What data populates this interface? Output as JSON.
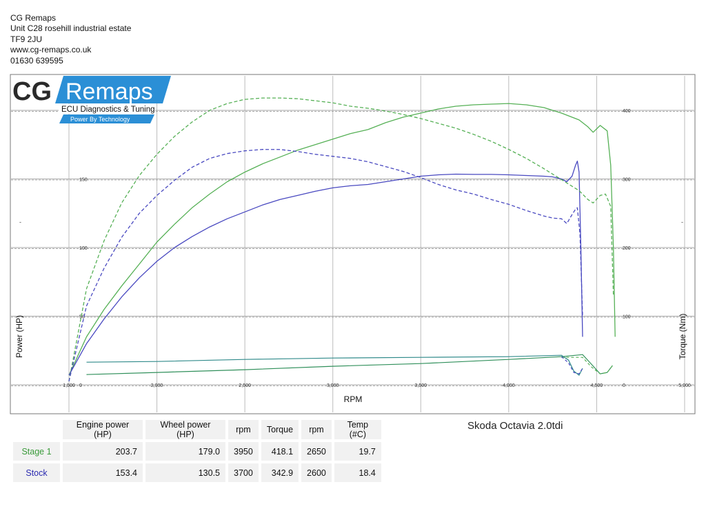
{
  "header": {
    "company": "CG Remaps",
    "address1": "Unit C28 rosehill industrial estate",
    "postcode": "TF9 2JU",
    "website": "www.cg-remaps.co.uk",
    "phone": "01630 639595"
  },
  "logo": {
    "brand_cg": "CG",
    "brand_remaps": "Remaps",
    "tagline": "ECU Diagnostics & Tuning",
    "sub_tagline": "Power By Technology",
    "accent_color": "#2b8fd6"
  },
  "vehicle": "Skoda Octavia 2.0tdi",
  "table": {
    "headers": [
      "Engine power (HP)",
      "Wheel power (HP)",
      "rpm",
      "Torque",
      "rpm",
      "Temp (#C)"
    ],
    "rows": [
      {
        "label": "Stage 1",
        "color": "#3a9a3a",
        "values": [
          "203.7",
          "179.0",
          "3950",
          "418.1",
          "2650",
          "19.7"
        ]
      },
      {
        "label": "Stock",
        "color": "#2a2ab0",
        "values": [
          "153.4",
          "130.5",
          "3700",
          "342.9",
          "2600",
          "18.4"
        ]
      }
    ]
  },
  "chart_data": {
    "type": "line",
    "xlabel": "RPM",
    "ylabel": "Power (HP)",
    "y2label": "Torque (Nm)",
    "xlim": [
      1500,
      5000
    ],
    "ylim": [
      0,
      200
    ],
    "y2lim": [
      0,
      400
    ],
    "x_ticks": [
      "1,500",
      "2,000",
      "2,500",
      "3,000",
      "3,500",
      "4,000",
      "4,500",
      "5,000"
    ],
    "y_ticks": [
      "0",
      "50",
      "100",
      "150",
      "200"
    ],
    "y2_ticks": [
      "0",
      "100",
      "200",
      "300",
      "400"
    ],
    "series": [
      {
        "name": "Stage 1",
        "kind": "power",
        "style": "solid",
        "color": "#55b055",
        "x": [
          1500,
          1600,
          1700,
          1800,
          1900,
          2000,
          2100,
          2200,
          2300,
          2400,
          2500,
          2600,
          2700,
          2800,
          2900,
          3000,
          3100,
          3200,
          3300,
          3400,
          3500,
          3600,
          3700,
          3800,
          3900,
          4000,
          4100,
          4200,
          4300,
          4400,
          4450,
          4480,
          4520,
          4560,
          4580,
          4595,
          4605
        ],
        "y": [
          7,
          35,
          55,
          72,
          88,
          104,
          117,
          129,
          139,
          148,
          155,
          161,
          166,
          171,
          175,
          179,
          183,
          186,
          191,
          195,
          198,
          201,
          203,
          204,
          204.5,
          205,
          204,
          202,
          198,
          193,
          188,
          184,
          189,
          185,
          160,
          100,
          35
        ]
      },
      {
        "name": "Stock",
        "kind": "power",
        "style": "solid",
        "color": "#4848c0",
        "x": [
          1500,
          1600,
          1700,
          1800,
          1900,
          2000,
          2100,
          2200,
          2300,
          2400,
          2500,
          2600,
          2700,
          2800,
          2900,
          3000,
          3100,
          3200,
          3300,
          3400,
          3500,
          3600,
          3700,
          3800,
          3900,
          4000,
          4100,
          4200,
          4250,
          4300,
          4330,
          4360,
          4380,
          4390,
          4400,
          4410,
          4420
        ],
        "y": [
          7,
          30,
          48,
          64,
          78,
          90,
          100,
          108,
          115,
          121,
          126,
          131,
          135,
          138,
          141,
          143.5,
          145,
          146,
          148,
          150,
          152,
          153,
          153.5,
          153.3,
          153.3,
          153,
          152.5,
          152,
          151.5,
          150,
          148,
          152,
          160,
          163,
          155,
          100,
          35
        ]
      },
      {
        "name": "Stage 1",
        "kind": "torque",
        "style": "dashed",
        "color": "#55b055",
        "x": [
          1500,
          1600,
          1700,
          1800,
          1900,
          2000,
          2100,
          2200,
          2300,
          2400,
          2500,
          2600,
          2700,
          2800,
          2900,
          3000,
          3100,
          3200,
          3300,
          3400,
          3500,
          3600,
          3700,
          3800,
          3900,
          4000,
          4100,
          4200,
          4300,
          4400,
          4450,
          4480,
          4520,
          4550,
          4580,
          4595
        ],
        "y": [
          5,
          140,
          210,
          265,
          305,
          336,
          362,
          383,
          400,
          410,
          416,
          418,
          418,
          417,
          414,
          411,
          406,
          403,
          399,
          394,
          388,
          381,
          374,
          365,
          355,
          343,
          330,
          315,
          299,
          283,
          270,
          265,
          276,
          278,
          260,
          130
        ]
      },
      {
        "name": "Stock",
        "kind": "torque",
        "style": "dashed",
        "color": "#4848c0",
        "x": [
          1500,
          1600,
          1700,
          1800,
          1900,
          2000,
          2100,
          2200,
          2300,
          2400,
          2500,
          2600,
          2700,
          2800,
          2900,
          3000,
          3100,
          3200,
          3300,
          3400,
          3500,
          3600,
          3700,
          3800,
          3900,
          4000,
          4100,
          4200,
          4250,
          4300,
          4330,
          4360,
          4380,
          4390,
          4405,
          4420
        ],
        "y": [
          5,
          115,
          170,
          215,
          250,
          276,
          298,
          317,
          330,
          337,
          341,
          343,
          342.9,
          340,
          336,
          333,
          330,
          325,
          318,
          311,
          302,
          292,
          284,
          278,
          270,
          263,
          254,
          246,
          243,
          242,
          235,
          248,
          256,
          258,
          220,
          100
        ]
      }
    ],
    "lower_lines": [
      {
        "name": "Stage 1",
        "style": "solid",
        "color": "#2f8f5a",
        "x": [
          1600,
          2000,
          2500,
          3000,
          3500,
          4000,
          4300,
          4420,
          4470,
          4520,
          4560,
          4590
        ],
        "y": [
          7.5,
          9,
          11,
          13.5,
          15.5,
          18.5,
          20.5,
          22,
          15,
          8,
          9,
          14
        ]
      },
      {
        "name": "Stock",
        "style": "solid",
        "color": "#2f8a8a",
        "x": [
          1600,
          2000,
          2500,
          3000,
          3500,
          4000,
          4300,
          4340,
          4370,
          4400,
          4420
        ],
        "y": [
          16.5,
          17,
          18.5,
          19.5,
          20,
          20.5,
          21.5,
          18,
          10,
          7,
          12
        ]
      },
      {
        "name": "Stage 1",
        "style": "dashed",
        "color": "#55b055",
        "x": [
          4300,
          4420,
          4470,
          4520,
          4560,
          4590
        ],
        "y": [
          20,
          20,
          13,
          8,
          9,
          14
        ]
      },
      {
        "name": "Stock",
        "style": "dashed",
        "color": "#4848c0",
        "x": [
          4300,
          4340,
          4370,
          4400,
          4420
        ],
        "y": [
          20.5,
          16,
          9,
          8,
          12
        ]
      }
    ]
  }
}
